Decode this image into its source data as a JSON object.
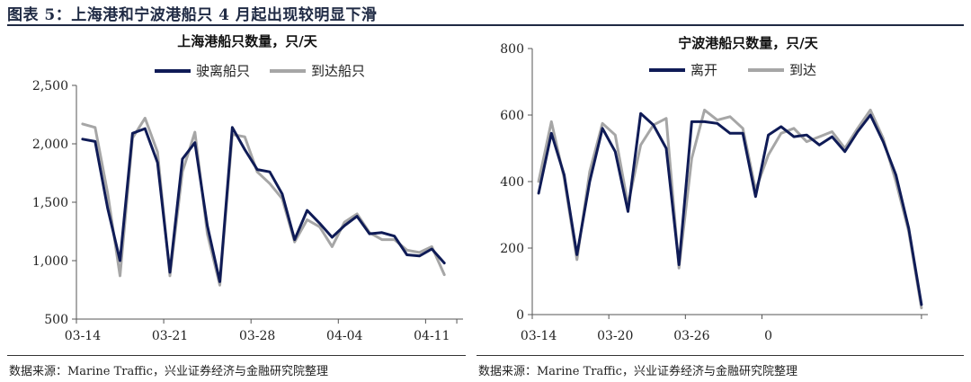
{
  "figure_title": "图表 5：上海港和宁波港船只 4 月起出现较明显下滑",
  "sources": {
    "left": "数据来源：Marine Traffic，兴业证券经济与金融研究院整理",
    "right": "数据来源：Marine Traffic，兴业证券经济与金融研究院整理"
  },
  "colors": {
    "series1": "#0f1b56",
    "series2": "#a6a6a6",
    "rule": "#1f2a44"
  },
  "chart_data": [
    {
      "type": "line",
      "title": "上海港船只数量，只/天",
      "xlabel": "",
      "ylabel": "",
      "ylim": [
        500,
        2500
      ],
      "yticks": [
        "500",
        "1,000",
        "1,500",
        "2,000",
        "2,500"
      ],
      "xtick_labels": [
        "03-14",
        "03-21",
        "03-28",
        "04-04",
        "04-11"
      ],
      "grid": false,
      "legend_position": "top",
      "x": [
        "03-14",
        "03-15",
        "03-16",
        "03-17",
        "03-18",
        "03-19",
        "03-20",
        "03-21",
        "03-22",
        "03-23",
        "03-24",
        "03-25",
        "03-26",
        "03-27",
        "03-28",
        "03-29",
        "03-30",
        "03-31",
        "04-01",
        "04-02",
        "04-03",
        "04-04",
        "04-05",
        "04-06",
        "04-07",
        "04-08",
        "04-09",
        "04-10",
        "04-11",
        "04-12",
        "04-13"
      ],
      "series": [
        {
          "name": "驶离船只",
          "values": [
            2040,
            2020,
            1450,
            1000,
            2090,
            2130,
            1840,
            900,
            1870,
            2010,
            1300,
            820,
            2140,
            1950,
            1780,
            1760,
            1570,
            1180,
            1430,
            1320,
            1200,
            1300,
            1380,
            1230,
            1240,
            1210,
            1050,
            1040,
            1100,
            980,
            null
          ]
        },
        {
          "name": "到达船只",
          "values": [
            2170,
            2140,
            1580,
            870,
            2050,
            2220,
            1930,
            870,
            1760,
            2100,
            1230,
            790,
            2080,
            2060,
            1760,
            1660,
            1530,
            1160,
            1350,
            1290,
            1120,
            1330,
            1400,
            1240,
            1180,
            1180,
            1090,
            1070,
            1120,
            880,
            null
          ]
        }
      ]
    },
    {
      "type": "line",
      "title": "宁波港船只数量，只/天",
      "xlabel": "",
      "ylabel": "",
      "ylim": [
        0,
        800
      ],
      "yticks": [
        "0",
        "200",
        "400",
        "600",
        "800"
      ],
      "xtick_labels": [
        "03-14",
        "03-20",
        "03-26",
        "0"
      ],
      "grid": false,
      "legend_position": "top",
      "x": [
        "03-14",
        "03-15",
        "03-16",
        "03-17",
        "03-18",
        "03-19",
        "03-20",
        "03-21",
        "03-22",
        "03-23",
        "03-24",
        "03-25",
        "03-26",
        "03-27",
        "03-28",
        "03-29",
        "03-30",
        "03-31",
        "04-01",
        "04-02",
        "04-03",
        "04-04",
        "04-05",
        "04-06",
        "04-07",
        "04-08",
        "04-09",
        "04-10",
        "04-11",
        "04-12",
        "04-13"
      ],
      "series": [
        {
          "name": "离开",
          "values": [
            365,
            545,
            420,
            180,
            400,
            560,
            490,
            310,
            605,
            570,
            500,
            150,
            580,
            580,
            575,
            545,
            545,
            355,
            540,
            565,
            535,
            540,
            510,
            535,
            490,
            550,
            600,
            520,
            420,
            260,
            30
          ]
        },
        {
          "name": "到达",
          "values": [
            400,
            580,
            410,
            165,
            430,
            575,
            540,
            330,
            510,
            570,
            590,
            140,
            470,
            615,
            585,
            595,
            560,
            375,
            480,
            545,
            560,
            520,
            535,
            550,
            500,
            560,
            615,
            530,
            400,
            250,
            20
          ]
        }
      ]
    }
  ]
}
